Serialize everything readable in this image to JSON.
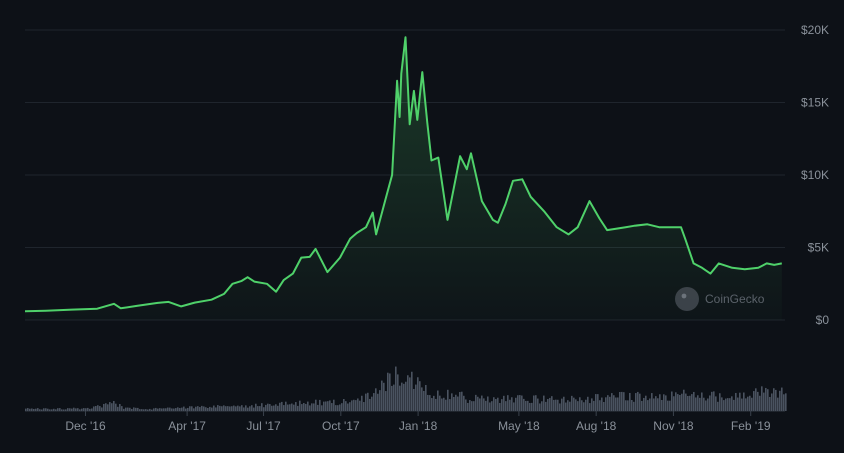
{
  "chart_data": {
    "type": "area",
    "title": "",
    "xlabel": "",
    "ylabel": "",
    "ylim": [
      0,
      20000
    ],
    "grid": true,
    "watermark": "CoinGecko",
    "colors": {
      "line": "#4fd16a",
      "grid": "#1f252d",
      "tick": "#8a919a",
      "volume": "#4a5360",
      "background": "#0d1117"
    },
    "y_ticks": [
      {
        "value": 0,
        "label": "$0"
      },
      {
        "value": 5000,
        "label": "$5K"
      },
      {
        "value": 10000,
        "label": "$10K"
      },
      {
        "value": 15000,
        "label": "$15K"
      },
      {
        "value": 20000,
        "label": "$20K"
      }
    ],
    "x_ticks": [
      {
        "date": "2016-12-01",
        "label": "Dec '16"
      },
      {
        "date": "2017-04-01",
        "label": "Apr '17"
      },
      {
        "date": "2017-07-01",
        "label": "Jul '17"
      },
      {
        "date": "2017-10-01",
        "label": "Oct '17"
      },
      {
        "date": "2018-01-01",
        "label": "Jan '18"
      },
      {
        "date": "2018-05-01",
        "label": "May '18"
      },
      {
        "date": "2018-08-01",
        "label": "Aug '18"
      },
      {
        "date": "2018-11-01",
        "label": "Nov '18"
      },
      {
        "date": "2019-02-01",
        "label": "Feb '19"
      }
    ],
    "x_range": [
      "2016-09-20",
      "2019-03-15"
    ],
    "series": [
      {
        "values": [
          [
            "2016-09-20",
            610
          ],
          [
            "2016-10-15",
            640
          ],
          [
            "2016-11-15",
            720
          ],
          [
            "2016-12-15",
            780
          ],
          [
            "2017-01-04",
            1120
          ],
          [
            "2017-01-12",
            810
          ],
          [
            "2017-02-01",
            980
          ],
          [
            "2017-02-25",
            1180
          ],
          [
            "2017-03-10",
            1250
          ],
          [
            "2017-03-25",
            940
          ],
          [
            "2017-04-10",
            1200
          ],
          [
            "2017-04-30",
            1400
          ],
          [
            "2017-05-15",
            1800
          ],
          [
            "2017-05-25",
            2500
          ],
          [
            "2017-06-05",
            2700
          ],
          [
            "2017-06-12",
            2950
          ],
          [
            "2017-06-20",
            2650
          ],
          [
            "2017-07-05",
            2500
          ],
          [
            "2017-07-16",
            1950
          ],
          [
            "2017-07-25",
            2750
          ],
          [
            "2017-08-05",
            3200
          ],
          [
            "2017-08-15",
            4300
          ],
          [
            "2017-08-25",
            4350
          ],
          [
            "2017-09-01",
            4900
          ],
          [
            "2017-09-15",
            3300
          ],
          [
            "2017-09-30",
            4300
          ],
          [
            "2017-10-12",
            5600
          ],
          [
            "2017-10-20",
            6000
          ],
          [
            "2017-10-31",
            6400
          ],
          [
            "2017-11-08",
            7400
          ],
          [
            "2017-11-12",
            5900
          ],
          [
            "2017-11-25",
            8700
          ],
          [
            "2017-12-01",
            10000
          ],
          [
            "2017-12-07",
            16500
          ],
          [
            "2017-12-10",
            14000
          ],
          [
            "2017-12-12",
            17000
          ],
          [
            "2017-12-17",
            19500
          ],
          [
            "2017-12-22",
            13500
          ],
          [
            "2017-12-27",
            15800
          ],
          [
            "2017-12-31",
            13800
          ],
          [
            "2018-01-06",
            17100
          ],
          [
            "2018-01-12",
            13600
          ],
          [
            "2018-01-17",
            11000
          ],
          [
            "2018-01-25",
            11200
          ],
          [
            "2018-02-05",
            6900
          ],
          [
            "2018-02-20",
            11300
          ],
          [
            "2018-02-28",
            10400
          ],
          [
            "2018-03-05",
            11500
          ],
          [
            "2018-03-18",
            8200
          ],
          [
            "2018-03-31",
            6900
          ],
          [
            "2018-04-06",
            6700
          ],
          [
            "2018-04-15",
            8000
          ],
          [
            "2018-04-24",
            9600
          ],
          [
            "2018-05-05",
            9700
          ],
          [
            "2018-05-15",
            8500
          ],
          [
            "2018-05-31",
            7500
          ],
          [
            "2018-06-15",
            6400
          ],
          [
            "2018-06-29",
            5900
          ],
          [
            "2018-07-10",
            6400
          ],
          [
            "2018-07-24",
            8200
          ],
          [
            "2018-08-05",
            7000
          ],
          [
            "2018-08-14",
            6200
          ],
          [
            "2018-09-05",
            6400
          ],
          [
            "2018-09-15",
            6500
          ],
          [
            "2018-10-01",
            6600
          ],
          [
            "2018-10-15",
            6400
          ],
          [
            "2018-11-10",
            6400
          ],
          [
            "2018-11-15",
            5600
          ],
          [
            "2018-11-25",
            3900
          ],
          [
            "2018-12-05",
            3600
          ],
          [
            "2018-12-15",
            3200
          ],
          [
            "2018-12-25",
            3900
          ],
          [
            "2019-01-10",
            3600
          ],
          [
            "2019-01-25",
            3500
          ],
          [
            "2019-02-10",
            3600
          ],
          [
            "2019-02-20",
            3900
          ],
          [
            "2019-03-01",
            3800
          ],
          [
            "2019-03-10",
            3900
          ]
        ]
      }
    ],
    "volume": [
      [
        "2016-09-20",
        0.05
      ],
      [
        "2016-12-01",
        0.06
      ],
      [
        "2017-01-04",
        0.18
      ],
      [
        "2017-01-15",
        0.07
      ],
      [
        "2017-02-15",
        0.05
      ],
      [
        "2017-03-20",
        0.08
      ],
      [
        "2017-05-25",
        0.12
      ],
      [
        "2017-06-15",
        0.12
      ],
      [
        "2017-07-15",
        0.16
      ],
      [
        "2017-08-20",
        0.2
      ],
      [
        "2017-09-15",
        0.2
      ],
      [
        "2017-10-20",
        0.25
      ],
      [
        "2017-11-12",
        0.42
      ],
      [
        "2017-12-07",
        0.9
      ],
      [
        "2017-12-12",
        0.55
      ],
      [
        "2017-12-22",
        0.78
      ],
      [
        "2018-01-17",
        0.45
      ],
      [
        "2018-02-06",
        0.42
      ],
      [
        "2018-03-01",
        0.3
      ],
      [
        "2018-04-15",
        0.3
      ],
      [
        "2018-05-15",
        0.28
      ],
      [
        "2018-06-15",
        0.25
      ],
      [
        "2018-07-24",
        0.3
      ],
      [
        "2018-08-15",
        0.32
      ],
      [
        "2018-09-15",
        0.35
      ],
      [
        "2018-10-15",
        0.3
      ],
      [
        "2018-11-20",
        0.42
      ],
      [
        "2018-12-15",
        0.35
      ],
      [
        "2019-01-20",
        0.32
      ],
      [
        "2019-02-24",
        0.52
      ],
      [
        "2019-03-10",
        0.42
      ]
    ]
  }
}
